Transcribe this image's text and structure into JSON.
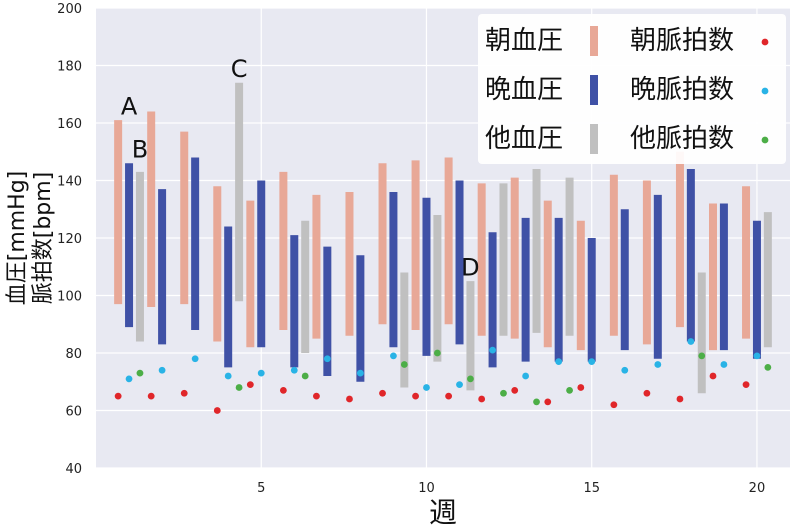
{
  "chart_data": {
    "type": "bar",
    "xlabel": "週",
    "ylabel_line1": "血圧[mmHg]",
    "ylabel_line2": "脈拍数[bpm]",
    "xlim": [
      0,
      21
    ],
    "ylim": [
      40,
      200
    ],
    "xticks": [
      5,
      10,
      15,
      20
    ],
    "yticks": [
      40,
      60,
      80,
      100,
      120,
      140,
      160,
      180,
      200
    ],
    "grid": true,
    "legend_position": "top-right",
    "colors": {
      "morning_bp": "#e8a897",
      "evening_bp": "#3f51a6",
      "other_bp": "#c0c0c0",
      "morning_pulse": "#e0262a",
      "evening_pulse": "#29b3e6",
      "other_pulse": "#4cae47",
      "plot_bg": "#e8e9f2",
      "grid": "#ffffff"
    },
    "legend": [
      {
        "label": "朝血圧",
        "kind": "bar",
        "color_key": "morning_bp"
      },
      {
        "label": "朝脈拍数",
        "kind": "dot",
        "color_key": "morning_pulse"
      },
      {
        "label": "晩血圧",
        "kind": "bar",
        "color_key": "evening_bp"
      },
      {
        "label": "晩脈拍数",
        "kind": "dot",
        "color_key": "evening_pulse"
      },
      {
        "label": "他血圧",
        "kind": "bar",
        "color_key": "other_bp"
      },
      {
        "label": "他脈拍数",
        "kind": "dot",
        "color_key": "other_pulse"
      }
    ],
    "series": {
      "morning_bp": [
        {
          "x": 1,
          "low": 97,
          "high": 161
        },
        {
          "x": 2,
          "low": 96,
          "high": 164
        },
        {
          "x": 3,
          "low": 97,
          "high": 157
        },
        {
          "x": 4,
          "low": 84,
          "high": 138
        },
        {
          "x": 5,
          "low": 82,
          "high": 133
        },
        {
          "x": 6,
          "low": 88,
          "high": 143
        },
        {
          "x": 7,
          "low": 85,
          "high": 135
        },
        {
          "x": 8,
          "low": 86,
          "high": 136
        },
        {
          "x": 9,
          "low": 90,
          "high": 146
        },
        {
          "x": 10,
          "low": 88,
          "high": 147
        },
        {
          "x": 11,
          "low": 90,
          "high": 148
        },
        {
          "x": 12,
          "low": 86,
          "high": 139
        },
        {
          "x": 13,
          "low": 85,
          "high": 141
        },
        {
          "x": 14,
          "low": 82,
          "high": 133
        },
        {
          "x": 15,
          "low": 81,
          "high": 126
        },
        {
          "x": 16,
          "low": 86,
          "high": 142
        },
        {
          "x": 17,
          "low": 83,
          "high": 140
        },
        {
          "x": 18,
          "low": 89,
          "high": 150
        },
        {
          "x": 19,
          "low": 81,
          "high": 132
        },
        {
          "x": 20,
          "low": 85,
          "high": 138
        }
      ],
      "evening_bp": [
        {
          "x": 1,
          "low": 89,
          "high": 146
        },
        {
          "x": 2,
          "low": 83,
          "high": 137
        },
        {
          "x": 3,
          "low": 88,
          "high": 148
        },
        {
          "x": 4,
          "low": 75,
          "high": 124
        },
        {
          "x": 5,
          "low": 82,
          "high": 140
        },
        {
          "x": 6,
          "low": 75,
          "high": 121
        },
        {
          "x": 7,
          "low": 72,
          "high": 117
        },
        {
          "x": 8,
          "low": 70,
          "high": 114
        },
        {
          "x": 9,
          "low": 82,
          "high": 136
        },
        {
          "x": 10,
          "low": 79,
          "high": 134
        },
        {
          "x": 11,
          "low": 83,
          "high": 140
        },
        {
          "x": 12,
          "low": 75,
          "high": 122
        },
        {
          "x": 13,
          "low": 77,
          "high": 127
        },
        {
          "x": 14,
          "low": 77,
          "high": 127
        },
        {
          "x": 15,
          "low": 77,
          "high": 120
        },
        {
          "x": 16,
          "low": 81,
          "high": 130
        },
        {
          "x": 17,
          "low": 78,
          "high": 135
        },
        {
          "x": 18,
          "low": 84,
          "high": 144
        },
        {
          "x": 19,
          "low": 81,
          "high": 132
        },
        {
          "x": 20,
          "low": 78,
          "high": 126
        }
      ],
      "other_bp": [
        {
          "x": 1,
          "low": 84,
          "high": 143
        },
        {
          "x": 4,
          "low": 98,
          "high": 174
        },
        {
          "x": 6,
          "low": 80,
          "high": 126
        },
        {
          "x": 9,
          "low": 68,
          "high": 108
        },
        {
          "x": 10,
          "low": 77,
          "high": 128
        },
        {
          "x": 11,
          "low": 67,
          "high": 105
        },
        {
          "x": 12,
          "low": 86,
          "high": 139
        },
        {
          "x": 13,
          "low": 87,
          "high": 144
        },
        {
          "x": 14,
          "low": 86,
          "high": 141
        },
        {
          "x": 18,
          "low": 66,
          "high": 108
        },
        {
          "x": 20,
          "low": 82,
          "high": 129
        }
      ],
      "morning_pulse": [
        {
          "x": 1,
          "y": 65
        },
        {
          "x": 2,
          "y": 65
        },
        {
          "x": 3,
          "y": 66
        },
        {
          "x": 4,
          "y": 60
        },
        {
          "x": 5,
          "y": 69
        },
        {
          "x": 6,
          "y": 67
        },
        {
          "x": 7,
          "y": 65
        },
        {
          "x": 8,
          "y": 64
        },
        {
          "x": 9,
          "y": 66
        },
        {
          "x": 10,
          "y": 65
        },
        {
          "x": 11,
          "y": 65
        },
        {
          "x": 12,
          "y": 64
        },
        {
          "x": 13,
          "y": 67
        },
        {
          "x": 14,
          "y": 63
        },
        {
          "x": 15,
          "y": 68
        },
        {
          "x": 16,
          "y": 62
        },
        {
          "x": 17,
          "y": 66
        },
        {
          "x": 18,
          "y": 64
        },
        {
          "x": 19,
          "y": 72
        },
        {
          "x": 20,
          "y": 69
        }
      ],
      "evening_pulse": [
        {
          "x": 1,
          "y": 71
        },
        {
          "x": 2,
          "y": 74
        },
        {
          "x": 3,
          "y": 78
        },
        {
          "x": 4,
          "y": 72
        },
        {
          "x": 5,
          "y": 73
        },
        {
          "x": 6,
          "y": 74
        },
        {
          "x": 7,
          "y": 78
        },
        {
          "x": 8,
          "y": 73
        },
        {
          "x": 9,
          "y": 79
        },
        {
          "x": 10,
          "y": 68
        },
        {
          "x": 11,
          "y": 69
        },
        {
          "x": 12,
          "y": 81
        },
        {
          "x": 13,
          "y": 72
        },
        {
          "x": 14,
          "y": 77
        },
        {
          "x": 15,
          "y": 77
        },
        {
          "x": 16,
          "y": 74
        },
        {
          "x": 17,
          "y": 76
        },
        {
          "x": 18,
          "y": 84
        },
        {
          "x": 19,
          "y": 76
        },
        {
          "x": 20,
          "y": 79
        }
      ],
      "other_pulse": [
        {
          "x": 1,
          "y": 73
        },
        {
          "x": 4,
          "y": 68
        },
        {
          "x": 6,
          "y": 72
        },
        {
          "x": 9,
          "y": 76
        },
        {
          "x": 10,
          "y": 80
        },
        {
          "x": 11,
          "y": 71
        },
        {
          "x": 12,
          "y": 66
        },
        {
          "x": 13,
          "y": 63
        },
        {
          "x": 14,
          "y": 67
        },
        {
          "x": 18,
          "y": 79
        },
        {
          "x": 20,
          "y": 75
        }
      ]
    },
    "annotations": [
      {
        "text": "A",
        "x": 1,
        "y": 163
      },
      {
        "text": "B",
        "x": 1.33,
        "y": 148
      },
      {
        "text": "C",
        "x": 4.33,
        "y": 176
      },
      {
        "text": "D",
        "x": 11.33,
        "y": 107
      }
    ]
  }
}
